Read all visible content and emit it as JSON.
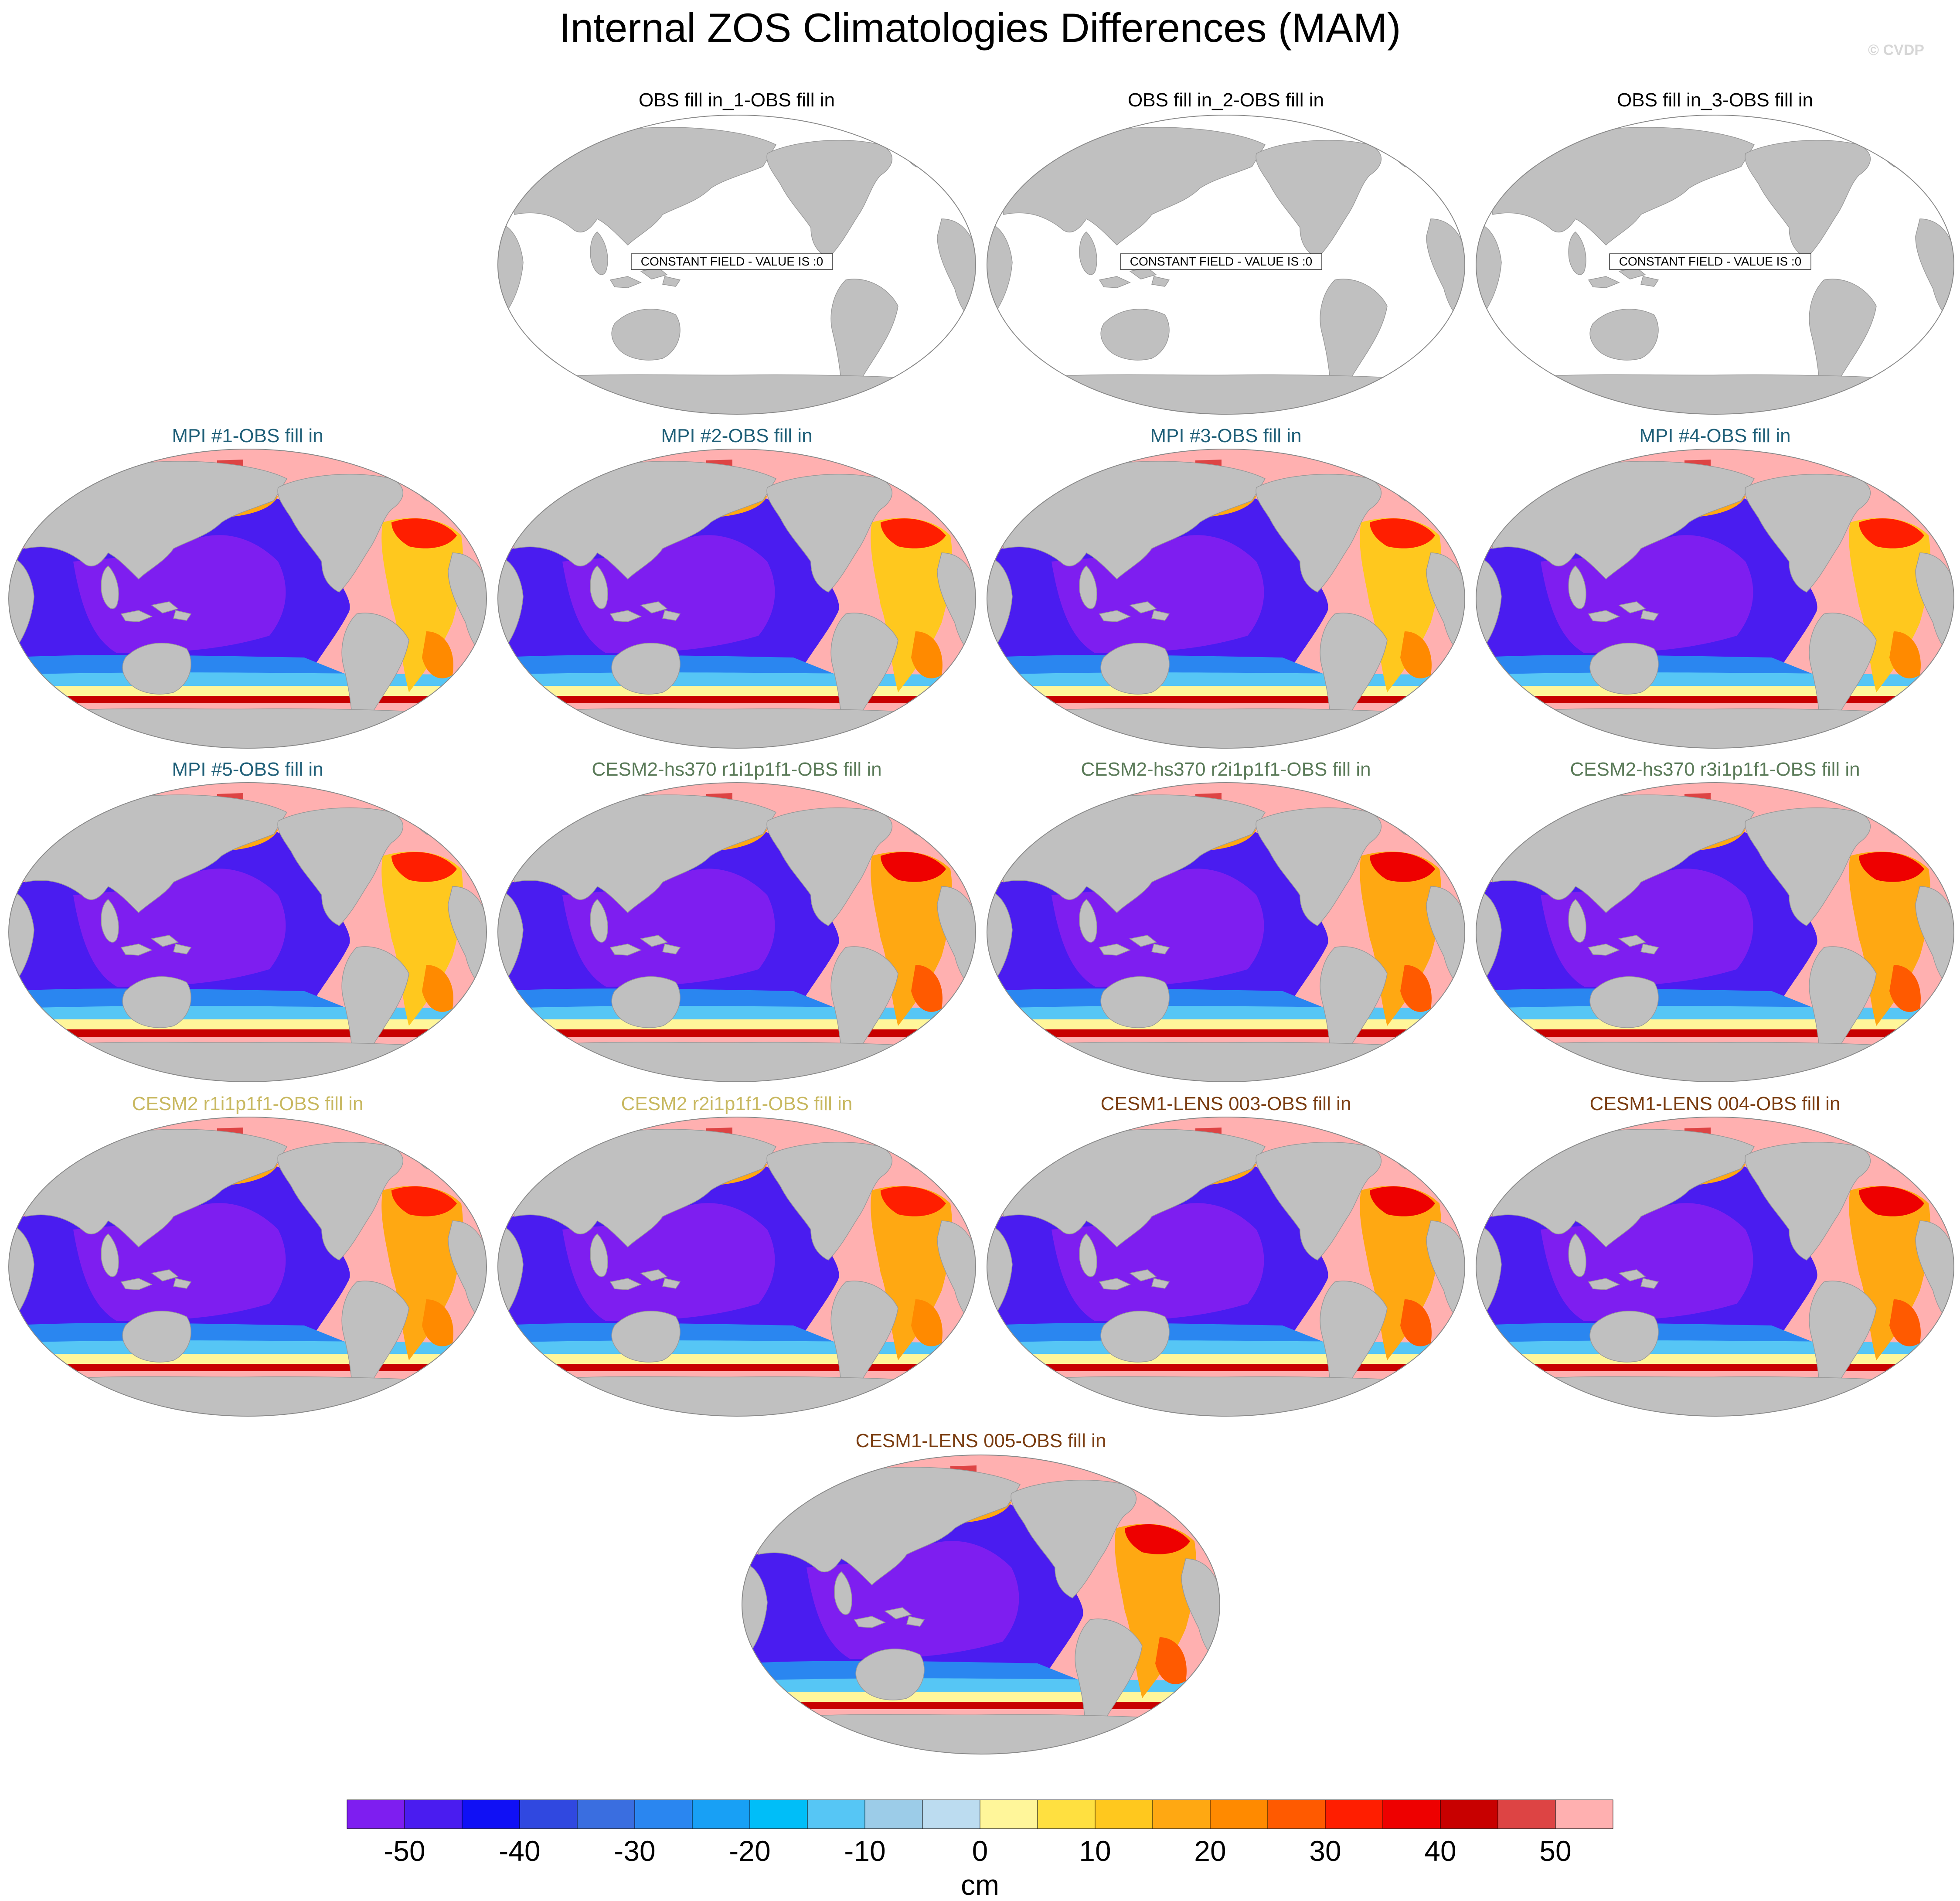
{
  "title": "Internal ZOS Climatologies Differences (MAM)",
  "credit": "© CVDP",
  "colors": {
    "land": "#c0c0c0",
    "ocean_blank": "#ffffff",
    "outline": "#8a8a8a",
    "obs_title": "#000000",
    "mpi_title": "#1f5f78",
    "cesm2_hs370_title": "#5a7a58",
    "cesm2_title": "#c8b860",
    "cesm1_lens_title": "#7a3c10"
  },
  "panels": [
    {
      "title": "OBS fill in_1-OBS fill in",
      "group": "obs",
      "constant_label": "CONSTANT FIELD - VALUE IS :0"
    },
    {
      "title": "OBS fill in_2-OBS fill in",
      "group": "obs",
      "constant_label": "CONSTANT FIELD - VALUE IS :0"
    },
    {
      "title": "OBS fill in_3-OBS fill in",
      "group": "obs",
      "constant_label": "CONSTANT FIELD - VALUE IS :0"
    },
    {
      "title": "MPI #1-OBS fill in",
      "group": "mpi"
    },
    {
      "title": "MPI #2-OBS fill in",
      "group": "mpi"
    },
    {
      "title": "MPI #3-OBS fill in",
      "group": "mpi"
    },
    {
      "title": "MPI #4-OBS fill in",
      "group": "mpi"
    },
    {
      "title": "MPI #5-OBS fill in",
      "group": "mpi"
    },
    {
      "title": "CESM2-hs370 r1i1p1f1-OBS fill in",
      "group": "cesm2_hs370"
    },
    {
      "title": "CESM2-hs370 r2i1p1f1-OBS fill in",
      "group": "cesm2_hs370"
    },
    {
      "title": "CESM2-hs370 r3i1p1f1-OBS fill in",
      "group": "cesm2_hs370"
    },
    {
      "title": "CESM2 r1i1p1f1-OBS fill in",
      "group": "cesm2"
    },
    {
      "title": "CESM2 r2i1p1f1-OBS fill in",
      "group": "cesm2"
    },
    {
      "title": "CESM1-LENS 003-OBS fill in",
      "group": "cesm1_lens"
    },
    {
      "title": "CESM1-LENS 004-OBS fill in",
      "group": "cesm1_lens"
    },
    {
      "title": "CESM1-LENS 005-OBS fill in",
      "group": "cesm1_lens"
    }
  ],
  "colorbar": {
    "units": "cm",
    "levels": [
      -50,
      -45,
      -40,
      -35,
      -30,
      -25,
      -20,
      -15,
      -10,
      -5,
      0,
      5,
      10,
      15,
      20,
      25,
      30,
      35,
      40,
      45,
      50
    ],
    "colors": [
      "#7e1ef0",
      "#4a1cf0",
      "#1010f5",
      "#3048e0",
      "#3a6ee0",
      "#2a86f0",
      "#18a0f5",
      "#00bef8",
      "#56c6f5",
      "#9ccce8",
      "#bcdcf0",
      "#fff69a",
      "#ffe040",
      "#ffc81e",
      "#ffa812",
      "#ff8a00",
      "#ff5a00",
      "#ff1e00",
      "#ee0000",
      "#c80000",
      "#dd4444",
      "#ffb0b0"
    ],
    "tick_labels": [
      "-50",
      "-40",
      "-30",
      "-20",
      "-10",
      "0",
      "10",
      "20",
      "30",
      "40",
      "50"
    ]
  },
  "chart_data": {
    "type": "heatmap",
    "title": "Internal ZOS Climatologies Differences (MAM)",
    "variable": "ZOS climatology difference",
    "season": "MAM",
    "units": "cm",
    "projection": "Robinson, Pacific-centered",
    "color_levels": [
      -50,
      -45,
      -40,
      -35,
      -30,
      -25,
      -20,
      -15,
      -10,
      -5,
      0,
      5,
      10,
      15,
      20,
      25,
      30,
      35,
      40,
      45,
      50
    ],
    "panels": [
      {
        "name": "OBS fill in_1-OBS fill in",
        "constant_value": 0
      },
      {
        "name": "OBS fill in_2-OBS fill in",
        "constant_value": 0
      },
      {
        "name": "OBS fill in_3-OBS fill in",
        "constant_value": 0
      },
      {
        "name": "MPI #1-OBS fill in",
        "pacific_indian": -50,
        "north_atlantic": 30,
        "subtropical_atlantic": 10,
        "southern_ocean_front": 40,
        "arctic_antarctic": 50
      },
      {
        "name": "MPI #2-OBS fill in",
        "pacific_indian": -50,
        "north_atlantic": 30,
        "subtropical_atlantic": 10,
        "southern_ocean_front": 40,
        "arctic_antarctic": 50
      },
      {
        "name": "MPI #3-OBS fill in",
        "pacific_indian": -50,
        "north_atlantic": 30,
        "subtropical_atlantic": 10,
        "southern_ocean_front": 40,
        "arctic_antarctic": 50
      },
      {
        "name": "MPI #4-OBS fill in",
        "pacific_indian": -50,
        "north_atlantic": 30,
        "subtropical_atlantic": 10,
        "southern_ocean_front": 40,
        "arctic_antarctic": 50
      },
      {
        "name": "MPI #5-OBS fill in",
        "pacific_indian": -50,
        "north_atlantic": 30,
        "subtropical_atlantic": 10,
        "southern_ocean_front": 40,
        "arctic_antarctic": 50
      },
      {
        "name": "CESM2-hs370 r1i1p1f1-OBS fill in",
        "pacific_indian": -50,
        "north_atlantic": 35,
        "subtropical_atlantic": 15,
        "southern_ocean_front": 40,
        "arctic_antarctic": 50
      },
      {
        "name": "CESM2-hs370 r2i1p1f1-OBS fill in",
        "pacific_indian": -50,
        "north_atlantic": 35,
        "subtropical_atlantic": 15,
        "southern_ocean_front": 40,
        "arctic_antarctic": 50
      },
      {
        "name": "CESM2-hs370 r3i1p1f1-OBS fill in",
        "pacific_indian": -50,
        "north_atlantic": 35,
        "subtropical_atlantic": 15,
        "southern_ocean_front": 40,
        "arctic_antarctic": 50
      },
      {
        "name": "CESM2 r1i1p1f1-OBS fill in",
        "pacific_indian": -50,
        "north_atlantic": 30,
        "subtropical_atlantic": 15,
        "southern_ocean_front": 40,
        "arctic_antarctic": 50
      },
      {
        "name": "CESM2 r2i1p1f1-OBS fill in",
        "pacific_indian": -50,
        "north_atlantic": 30,
        "subtropical_atlantic": 15,
        "southern_ocean_front": 40,
        "arctic_antarctic": 50
      },
      {
        "name": "CESM1-LENS 003-OBS fill in",
        "pacific_indian": -50,
        "north_atlantic": 35,
        "subtropical_atlantic": 15,
        "southern_ocean_front": 40,
        "arctic_antarctic": 50
      },
      {
        "name": "CESM1-LENS 004-OBS fill in",
        "pacific_indian": -50,
        "north_atlantic": 35,
        "subtropical_atlantic": 15,
        "southern_ocean_front": 40,
        "arctic_antarctic": 50
      },
      {
        "name": "CESM1-LENS 005-OBS fill in",
        "pacific_indian": -50,
        "north_atlantic": 35,
        "subtropical_atlantic": 15,
        "southern_ocean_front": 40,
        "arctic_antarctic": 50
      }
    ]
  }
}
